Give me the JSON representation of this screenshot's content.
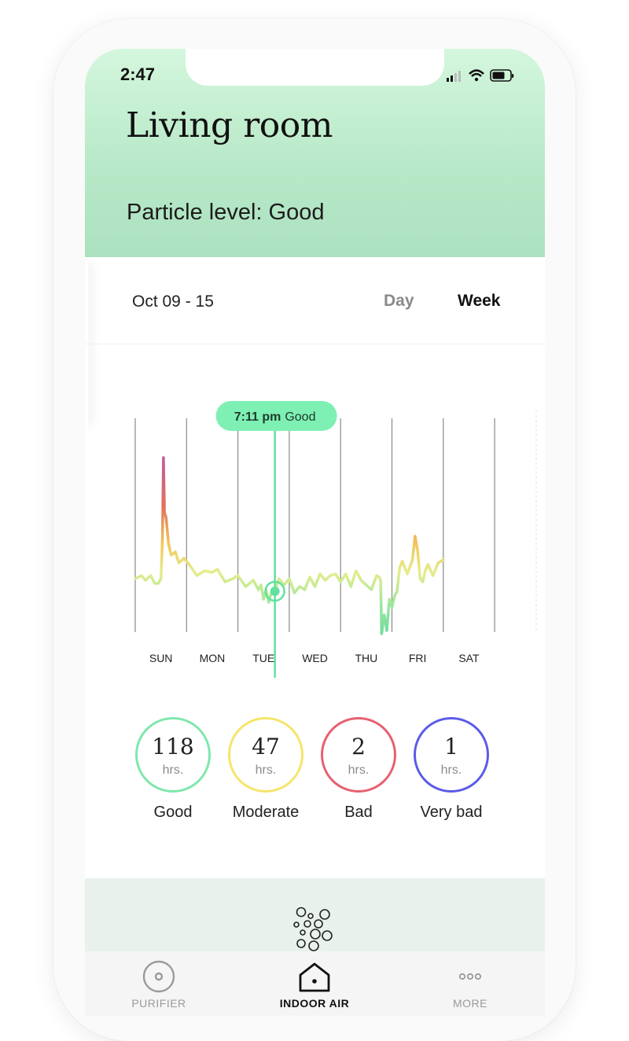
{
  "status_bar": {
    "time": "2:47",
    "signal_icon": "signal-icon",
    "wifi_icon": "wifi-icon",
    "battery_icon": "battery-icon"
  },
  "header": {
    "title": "Living room",
    "particle_level": "Particle level: Good"
  },
  "range": {
    "label": "Oct 09 - 15",
    "tabs": [
      "Day",
      "Week"
    ],
    "selected_tab": "Week"
  },
  "tooltip": {
    "time": "7:11 pm",
    "status": "Good"
  },
  "chart_data": {
    "type": "line",
    "categories": [
      "SUN",
      "MON",
      "TUE",
      "WED",
      "THU",
      "FRI",
      "SAT"
    ],
    "cursor_day": 2.72,
    "series": [
      {
        "x": [
          0,
          0.12,
          0.2,
          0.3,
          0.38,
          0.45,
          0.5,
          0.53,
          0.55,
          0.57,
          0.6,
          0.65,
          0.7,
          0.78,
          0.85,
          0.95,
          1.05,
          1.2,
          1.35,
          1.5,
          1.6,
          1.75,
          1.9,
          2.0,
          2.15,
          2.3,
          2.4,
          2.45,
          2.5,
          2.55,
          2.6,
          2.65,
          2.72,
          2.8,
          2.9,
          3.0,
          3.1,
          3.2,
          3.3,
          3.4,
          3.5,
          3.6,
          3.7,
          3.8,
          3.9,
          4.0,
          4.1,
          4.2,
          4.3,
          4.4,
          4.5,
          4.6,
          4.7,
          4.75,
          4.78,
          4.8,
          4.85,
          4.9,
          4.95,
          5.0,
          5.05,
          5.1,
          5.15,
          5.2,
          5.3,
          5.4,
          5.45,
          5.5,
          5.55,
          5.6,
          5.65,
          5.7,
          5.8,
          5.9,
          6.0
        ],
        "y": [
          3,
          5,
          2,
          5,
          0,
          0,
          3,
          28,
          80,
          45,
          42,
          25,
          18,
          20,
          13,
          16,
          12,
          5,
          8,
          7,
          9,
          1,
          3,
          5,
          -2,
          2,
          -4,
          -1,
          -10,
          -4,
          -12,
          -6,
          -5,
          3,
          -1,
          3,
          -6,
          -2,
          -4,
          4,
          -2,
          6,
          2,
          5,
          6,
          1,
          6,
          -2,
          8,
          2,
          -1,
          -4,
          5,
          4,
          2,
          -32,
          -20,
          -30,
          -10,
          -15,
          -8,
          -5,
          10,
          14,
          6,
          15,
          30,
          21,
          3,
          1,
          8,
          12,
          5,
          13,
          15
        ],
        "ylim": [
          -40,
          100
        ]
      }
    ]
  },
  "stats": [
    {
      "value": "118",
      "unit": "hrs.",
      "label": "Good",
      "color": "#7ee8ac"
    },
    {
      "value": "47",
      "unit": "hrs.",
      "label": "Moderate",
      "color": "#f5e56a"
    },
    {
      "value": "2",
      "unit": "hrs.",
      "label": "Bad",
      "color": "#e66070"
    },
    {
      "value": "1",
      "unit": "hrs.",
      "label": "Very bad",
      "color": "#5b5be8"
    }
  ],
  "panel": {
    "icon": "bubbles-icon"
  },
  "nav": [
    {
      "label": "PURIFIER",
      "icon": "purifier-icon",
      "active": false
    },
    {
      "label": "INDOOR AIR",
      "icon": "home-icon",
      "active": true
    },
    {
      "label": "MORE",
      "icon": "more-icon",
      "active": false
    }
  ]
}
